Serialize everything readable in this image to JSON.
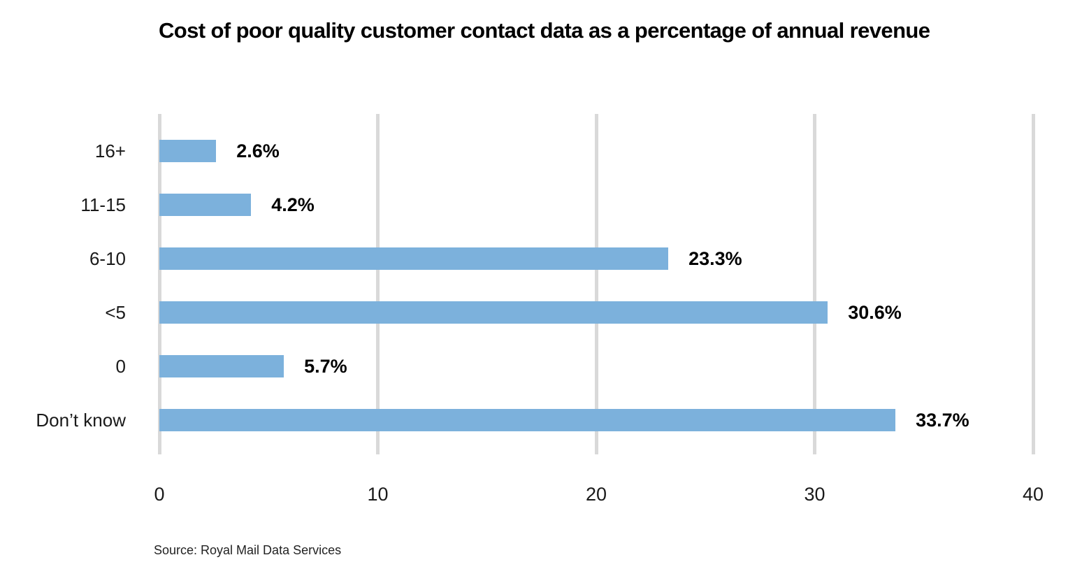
{
  "title": "Cost of poor quality customer contact data as a percentage of annual revenue",
  "source": "Source: Royal Mail Data Services",
  "colors": {
    "bar": "#7CB1DC",
    "gridline": "#D9D9D9",
    "title_text": "#000000",
    "label_text": "#1A1A1A"
  },
  "chart_data": {
    "type": "bar",
    "orientation": "horizontal",
    "title": "Cost of poor quality customer contact data as a percentage of annual revenue",
    "categories": [
      "16+",
      "11-15",
      "6-10",
      "<5",
      "0",
      "Don’t know"
    ],
    "values": [
      2.6,
      4.2,
      23.3,
      30.6,
      5.7,
      33.7
    ],
    "value_labels": [
      "2.6%",
      "4.2%",
      "23.3%",
      "30.6%",
      "5.7%",
      "33.7%"
    ],
    "xlabel": "",
    "ylabel": "",
    "xlim": [
      0,
      40
    ],
    "x_ticks": [
      "0",
      "10",
      "20",
      "30",
      "40"
    ],
    "grid": true,
    "legend": "none",
    "source": "Source: Royal Mail Data Services"
  }
}
